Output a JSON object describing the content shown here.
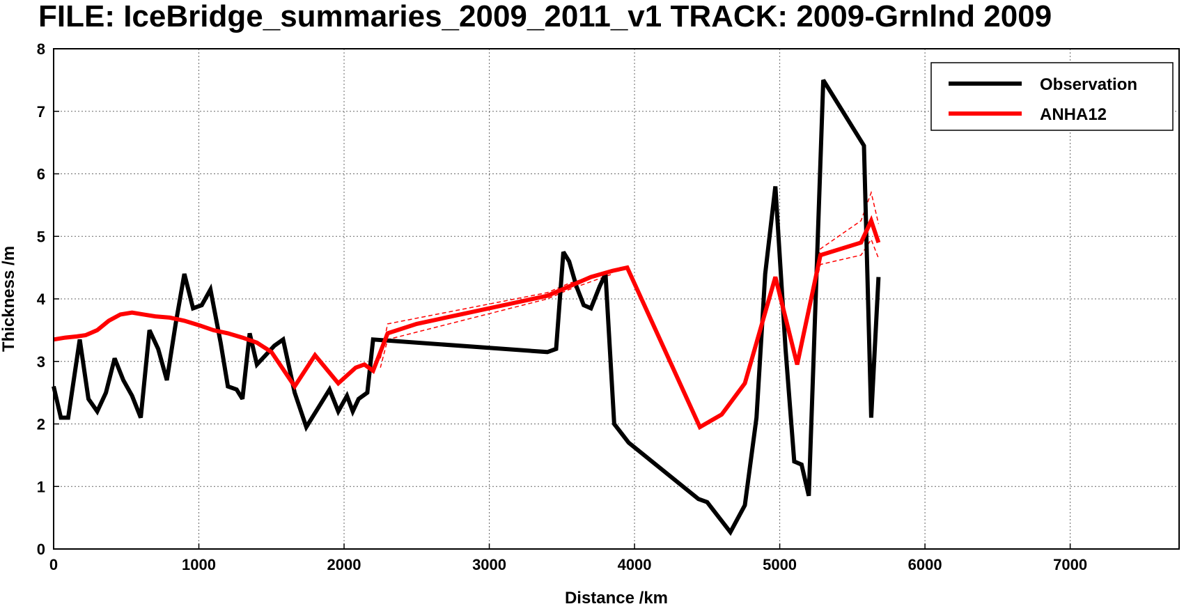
{
  "chart_data": {
    "type": "line",
    "title": "FILE: IceBridge_summaries_2009_2011_v1 TRACK: 2009-Grnlnd 2009",
    "xlabel": "Distance /km",
    "ylabel": "Thickness /m",
    "xlim": [
      0,
      7750
    ],
    "ylim": [
      0,
      8
    ],
    "xticks": [
      0,
      1000,
      2000,
      3000,
      4000,
      5000,
      6000,
      7000
    ],
    "yticks": [
      0,
      1,
      2,
      3,
      4,
      5,
      6,
      7,
      8
    ],
    "grid": true,
    "legend_position": "top-right",
    "series": [
      {
        "name": "Observation",
        "color": "#000000",
        "x": [
          0,
          50,
          100,
          180,
          240,
          300,
          360,
          420,
          480,
          540,
          600,
          660,
          720,
          780,
          840,
          900,
          960,
          1020,
          1080,
          1150,
          1200,
          1260,
          1300,
          1350,
          1400,
          1460,
          1520,
          1580,
          1660,
          1740,
          1820,
          1900,
          1960,
          2020,
          2060,
          2100,
          2160,
          2200,
          3400,
          3460,
          3510,
          3550,
          3600,
          3650,
          3700,
          3760,
          3800,
          3860,
          3960,
          4440,
          4500,
          4660,
          4760,
          4840,
          4900,
          4970,
          5040,
          5100,
          5150,
          5200,
          5300,
          5580,
          5630,
          5680
        ],
        "y": [
          2.6,
          2.1,
          2.1,
          3.35,
          2.4,
          2.2,
          2.5,
          3.05,
          2.7,
          2.45,
          2.1,
          3.5,
          3.2,
          2.7,
          3.6,
          4.4,
          3.85,
          3.9,
          4.15,
          3.3,
          2.6,
          2.55,
          2.4,
          3.45,
          2.95,
          3.1,
          3.25,
          3.35,
          2.5,
          1.95,
          2.25,
          2.55,
          2.2,
          2.45,
          2.2,
          2.4,
          2.5,
          3.35,
          3.15,
          3.2,
          4.75,
          4.6,
          4.2,
          3.9,
          3.85,
          4.2,
          4.4,
          2.0,
          1.7,
          0.8,
          0.75,
          0.27,
          0.7,
          2.1,
          4.4,
          5.8,
          3.2,
          1.4,
          1.35,
          0.85,
          7.5,
          6.45,
          2.1,
          4.35
        ]
      },
      {
        "name": "ANHA12",
        "color": "#ff0000",
        "x": [
          0,
          80,
          160,
          220,
          300,
          380,
          460,
          540,
          620,
          700,
          800,
          900,
          1000,
          1100,
          1200,
          1300,
          1400,
          1500,
          1660,
          1800,
          1960,
          2080,
          2140,
          2200,
          2300,
          2500,
          2800,
          3100,
          3400,
          3550,
          3700,
          3850,
          3950,
          4450,
          4600,
          4760,
          4970,
          5120,
          5280,
          5560,
          5630,
          5680
        ],
        "y": [
          3.35,
          3.38,
          3.4,
          3.42,
          3.5,
          3.65,
          3.75,
          3.78,
          3.75,
          3.72,
          3.7,
          3.65,
          3.58,
          3.5,
          3.45,
          3.38,
          3.3,
          3.15,
          2.6,
          3.1,
          2.65,
          2.9,
          2.95,
          2.85,
          3.45,
          3.6,
          3.75,
          3.9,
          4.05,
          4.2,
          4.35,
          4.45,
          4.5,
          1.95,
          2.15,
          2.65,
          4.35,
          2.95,
          4.7,
          4.9,
          5.25,
          4.9
        ]
      }
    ],
    "ensemble_members": {
      "color": "#ff0000",
      "style": "dashed",
      "lines": [
        {
          "x": [
            2250,
            2300,
            3400,
            3550,
            3850
          ],
          "y": [
            3.05,
            3.6,
            4.1,
            4.25,
            4.45
          ]
        },
        {
          "x": [
            2250,
            2300,
            3400,
            3550,
            3850
          ],
          "y": [
            2.9,
            3.35,
            4.0,
            4.15,
            4.4
          ]
        },
        {
          "x": [
            5180,
            5280,
            5560,
            5630,
            5680
          ],
          "y": [
            3.7,
            4.8,
            5.25,
            5.7,
            5.2
          ]
        },
        {
          "x": [
            5180,
            5280,
            5560,
            5630,
            5680
          ],
          "y": [
            3.55,
            4.55,
            4.7,
            4.95,
            4.65
          ]
        }
      ]
    }
  }
}
